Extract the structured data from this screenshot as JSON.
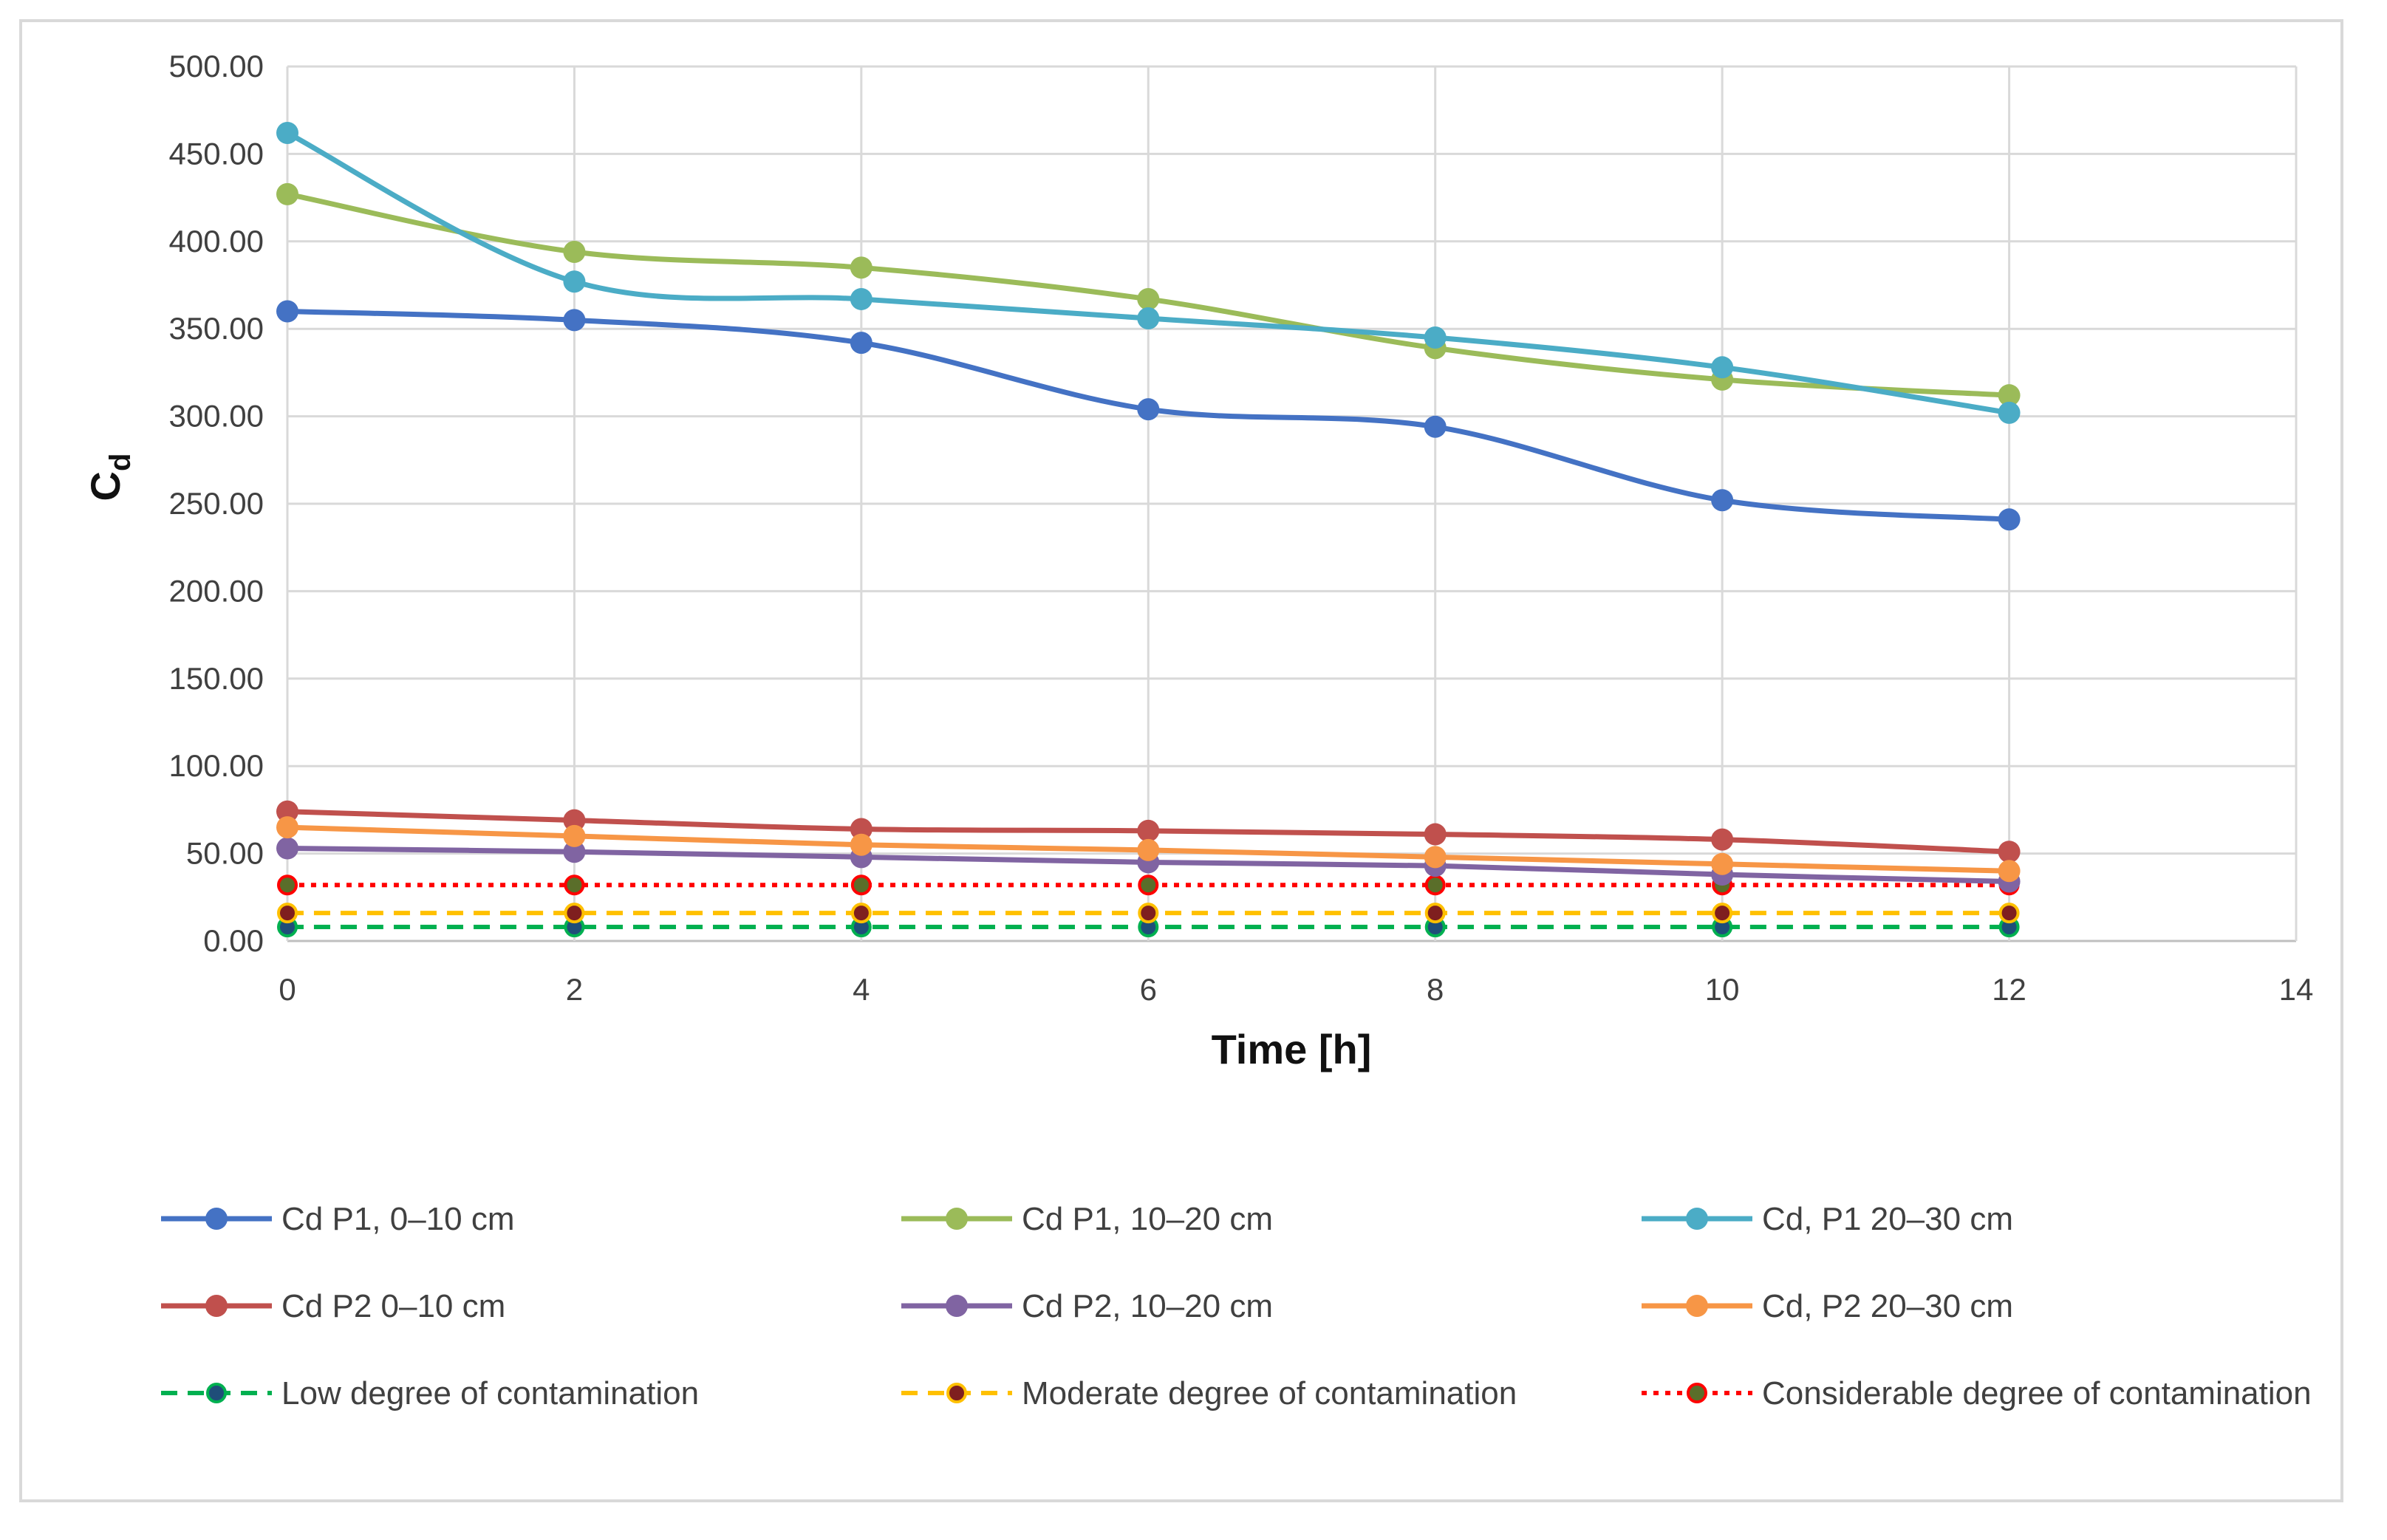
{
  "chart_data": {
    "type": "line",
    "title": "",
    "xlabel": "Time [h]",
    "ylabel_main": "C",
    "ylabel_sub": "d",
    "xlim": [
      0,
      14
    ],
    "ylim": [
      0,
      500
    ],
    "x_ticks": [
      "0",
      "2",
      "4",
      "6",
      "8",
      "10",
      "12",
      "14"
    ],
    "y_ticks": [
      "0.00",
      "50.00",
      "100.00",
      "150.00",
      "200.00",
      "250.00",
      "300.00",
      "350.00",
      "400.00",
      "450.00",
      "500.00"
    ],
    "grid": true,
    "legend_position": "bottom",
    "x": [
      0,
      2,
      4,
      6,
      8,
      10,
      12
    ],
    "series": [
      {
        "name": "Cd P1, 0–10 cm",
        "color": "#4472c4",
        "style": "solid",
        "marker_fill": "#4472c4",
        "values": [
          360,
          355,
          342,
          304,
          294,
          252,
          241
        ]
      },
      {
        "name": "Cd P1, 10–20 cm",
        "color": "#9bbb59",
        "style": "solid",
        "marker_fill": "#9bbb59",
        "values": [
          427,
          394,
          385,
          367,
          339,
          321,
          312
        ]
      },
      {
        "name": "Cd, P1 20–30 cm",
        "color": "#4bacc6",
        "style": "solid",
        "marker_fill": "#4bacc6",
        "values": [
          462,
          377,
          367,
          356,
          345,
          328,
          302
        ]
      },
      {
        "name": "Cd P2 0–10 cm",
        "color": "#c0504d",
        "style": "solid",
        "marker_fill": "#c0504d",
        "values": [
          74,
          69,
          64,
          63,
          61,
          58,
          51
        ]
      },
      {
        "name": "Cd P2, 10–20 cm",
        "color": "#8064a2",
        "style": "solid",
        "marker_fill": "#8064a2",
        "values": [
          53,
          51,
          48,
          45,
          43,
          38,
          34
        ]
      },
      {
        "name": "Cd, P2 20–30 cm",
        "color": "#f79646",
        "style": "solid",
        "marker_fill": "#f79646",
        "values": [
          65,
          60,
          55,
          52,
          48,
          44,
          40
        ]
      },
      {
        "name": "Low degree of contamination",
        "color": "#00b050",
        "style": "dashed",
        "marker_fill": "#1f4e79",
        "values": [
          8,
          8,
          8,
          8,
          8,
          8,
          8
        ]
      },
      {
        "name": "Moderate degree of contamination",
        "color": "#ffc000",
        "style": "dashed",
        "marker_fill": "#7f1f1f",
        "values": [
          16,
          16,
          16,
          16,
          16,
          16,
          16
        ]
      },
      {
        "name": "Considerable degree of contamination",
        "color": "#ff0000",
        "style": "dotted",
        "marker_fill": "#5a6e2a",
        "values": [
          32,
          32,
          32,
          32,
          32,
          32,
          32
        ]
      }
    ]
  }
}
